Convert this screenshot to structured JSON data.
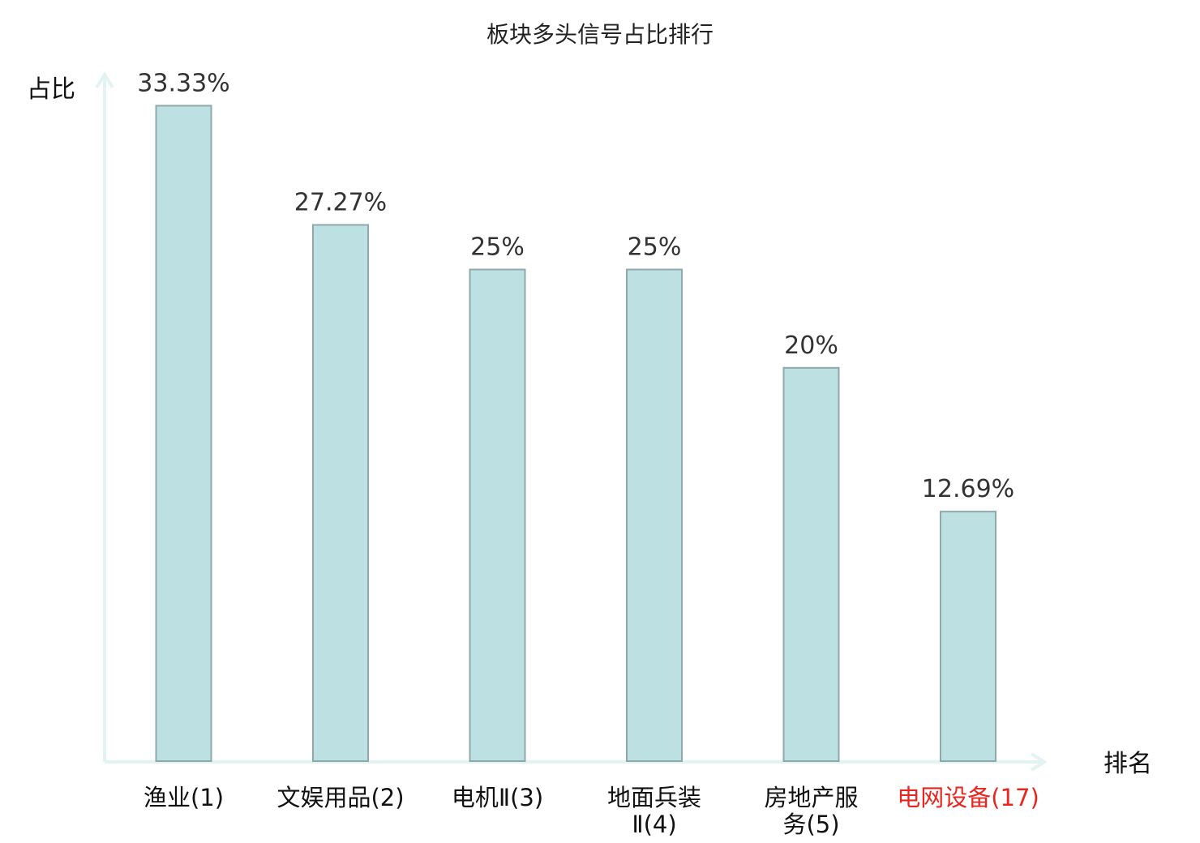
{
  "chart_data": {
    "type": "bar",
    "title": "板块多头信号占比排行",
    "ylabel": "占比",
    "xlabel": "排名",
    "categories": [
      {
        "lines": [
          "渔业(1)"
        ],
        "highlight": false
      },
      {
        "lines": [
          "文娱用品(2)"
        ],
        "highlight": false
      },
      {
        "lines": [
          "电机Ⅱ(3)"
        ],
        "highlight": false
      },
      {
        "lines": [
          "地面兵装",
          "Ⅱ(4)"
        ],
        "highlight": false
      },
      {
        "lines": [
          "房地产服",
          "务(5)"
        ],
        "highlight": false
      },
      {
        "lines": [
          "电网设备(17)"
        ],
        "highlight": true
      }
    ],
    "values": [
      33.33,
      27.27,
      25,
      25,
      20,
      12.69
    ],
    "value_labels": [
      "33.33%",
      "27.27%",
      "25%",
      "25%",
      "20%",
      "12.69%"
    ],
    "ylim": [
      0,
      35
    ],
    "grid": false,
    "colors": {
      "bar_fill": "#bde0e2",
      "bar_stroke": "#8fa9ab",
      "axis": "#e2f3f1",
      "highlight": "#e8261f"
    }
  }
}
